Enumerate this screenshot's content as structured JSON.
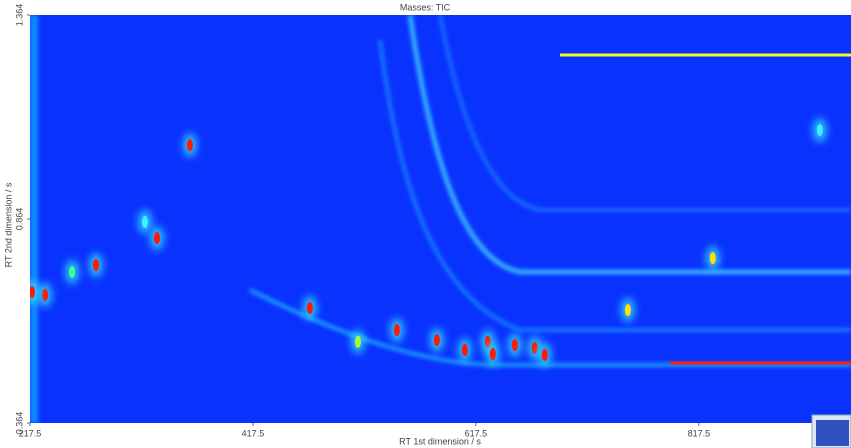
{
  "chart_data": {
    "type": "heatmap",
    "title": "Masses: TIC",
    "x_label": "RT 1st dimension / s",
    "y_label": "RT 2nd dimension / s",
    "xlim": [
      217.5,
      954
    ],
    "xticks": [
      217.5,
      417.5,
      617.5,
      817.5
    ],
    "ylim": [
      0.364,
      1.364
    ],
    "yticks": [
      0.364,
      0.864,
      1.364
    ],
    "background": "#0a32ff",
    "peaks": {
      "x": [
        361,
        331.4,
        276.7,
        231,
        219.3,
        468.6,
        511.7,
        546.6,
        582.5,
        607.6,
        628.2,
        632.7,
        652.4,
        670.3,
        679.3,
        753.8,
        830,
        255.2,
        320.6,
        926
      ],
      "y": [
        1.045,
        0.817,
        0.751,
        0.678,
        0.685,
        0.646,
        0.563,
        0.592,
        0.567,
        0.543,
        0.563,
        0.533,
        0.555,
        0.548,
        0.531,
        0.641,
        0.768,
        0.734,
        0.857,
        1.082
      ],
      "colors": [
        "#ff1a00",
        "#ff1a00",
        "#ff1a00",
        "#ff1a00",
        "#ff1a00",
        "#ff1a00",
        "#a8ff30",
        "#ff1a00",
        "#ff1a00",
        "#ff1a00",
        "#ff1a00",
        "#ff1a00",
        "#ff1a00",
        "#ff1a00",
        "#ff1a00",
        "#ffe000",
        "#ffe000",
        "#40ff90",
        "#40f0ff",
        "#40f0ff"
      ]
    }
  }
}
